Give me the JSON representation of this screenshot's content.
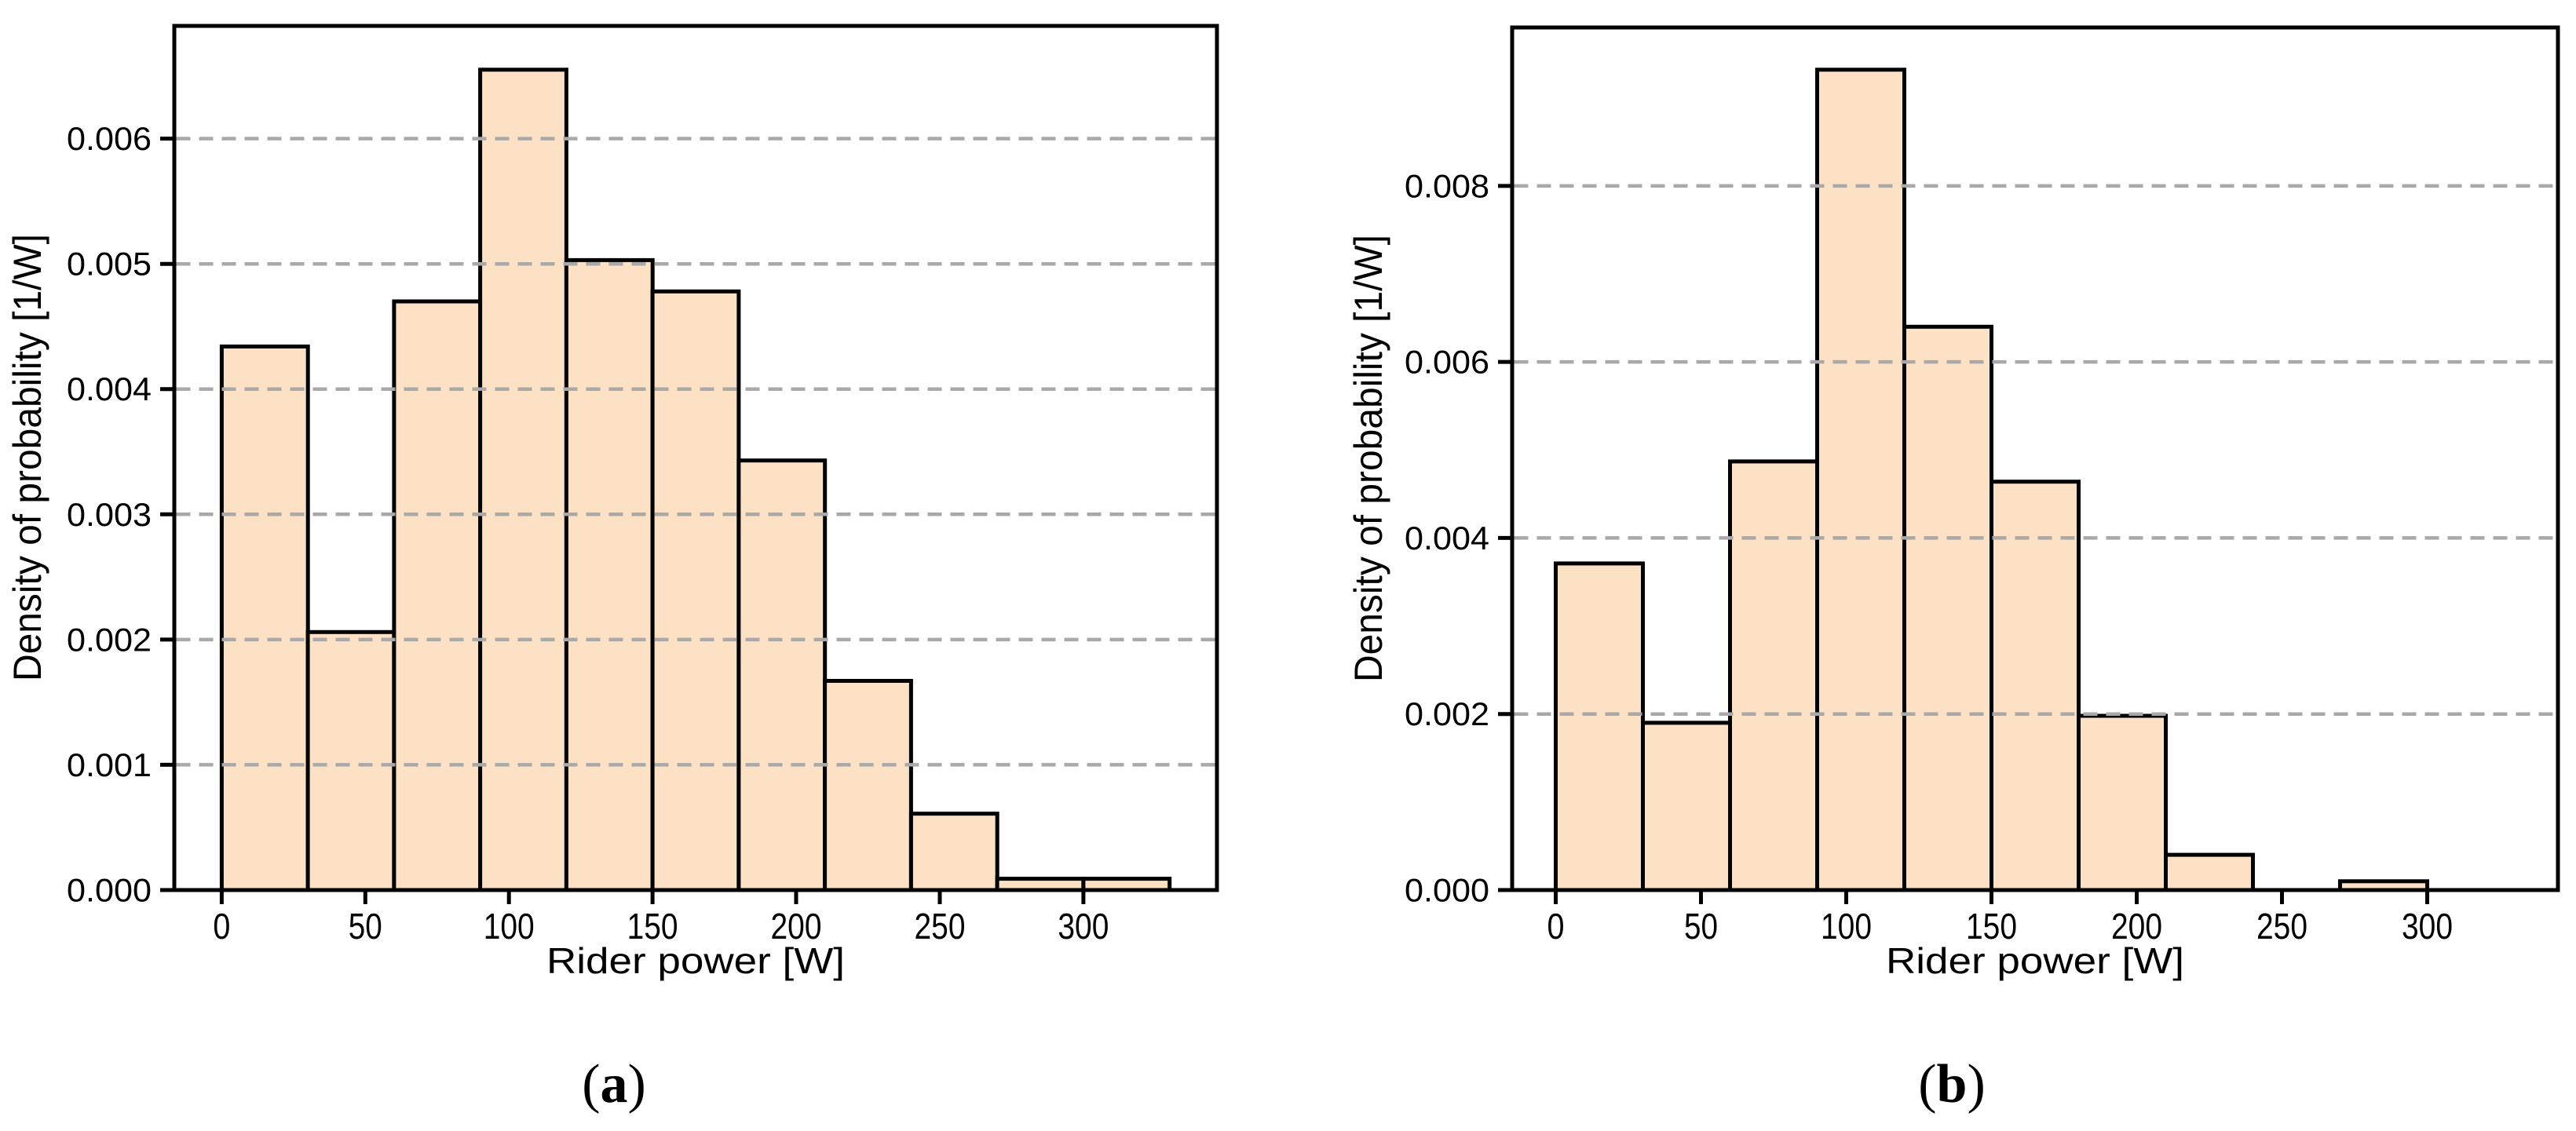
{
  "figure": {
    "colors": {
      "background": "#ffffff",
      "bar_fill": "#fce1c4",
      "bar_edge": "#000000",
      "grid": "#a9a9a9",
      "axis": "#000000",
      "text": "#000000"
    }
  },
  "chart_data": [
    {
      "id": "a",
      "type": "bar",
      "subtype": "histogram",
      "title": "",
      "caption": {
        "open": "(",
        "letter": "a",
        "close": ")"
      },
      "xlabel": "Rider power [W]",
      "ylabel": "Density of probability [1/W]",
      "bin_edges": [
        0,
        30,
        60,
        90,
        120,
        150,
        180,
        210,
        240,
        270,
        300,
        330
      ],
      "densities": [
        0.00434,
        0.00206,
        0.0047,
        0.00655,
        0.00503,
        0.00478,
        0.00343,
        0.00167,
        0.00061,
        9e-05,
        9e-05
      ],
      "xticks": [
        0,
        50,
        100,
        150,
        200,
        250,
        300
      ],
      "xtick_labels": [
        "0",
        "50",
        "100",
        "150",
        "200",
        "250",
        "300"
      ],
      "yticks": [
        0,
        0.001,
        0.002,
        0.003,
        0.004,
        0.005,
        0.006
      ],
      "ytick_labels": [
        "0.000",
        "0.001",
        "0.002",
        "0.003",
        "0.004",
        "0.005",
        "0.006"
      ],
      "xlim": [
        -16.5,
        346.5
      ],
      "ylim": [
        0,
        0.0069
      ],
      "grid": "horizontal-dashed",
      "legend": null
    },
    {
      "id": "b",
      "type": "bar",
      "subtype": "histogram",
      "title": "",
      "caption": {
        "open": "(",
        "letter": "b",
        "close": ")"
      },
      "xlabel": "Rider power [W]",
      "ylabel": "Density of probability [1/W]",
      "bin_edges": [
        0,
        30,
        60,
        90,
        120,
        150,
        180,
        210,
        240,
        270,
        300
      ],
      "densities": [
        0.00371,
        0.0019,
        0.00487,
        0.00932,
        0.0064,
        0.00464,
        0.00198,
        0.0004,
        0.0,
        0.0001
      ],
      "xticks": [
        0,
        50,
        100,
        150,
        200,
        250,
        300
      ],
      "xtick_labels": [
        "0",
        "50",
        "100",
        "150",
        "200",
        "250",
        "300"
      ],
      "yticks": [
        0,
        0.002,
        0.004,
        0.006,
        0.008
      ],
      "ytick_labels": [
        "0.000",
        "0.002",
        "0.004",
        "0.006",
        "0.008"
      ],
      "xlim": [
        -15,
        345
      ],
      "ylim": [
        0,
        0.0098
      ],
      "grid": "horizontal-dashed",
      "legend": null
    }
  ]
}
